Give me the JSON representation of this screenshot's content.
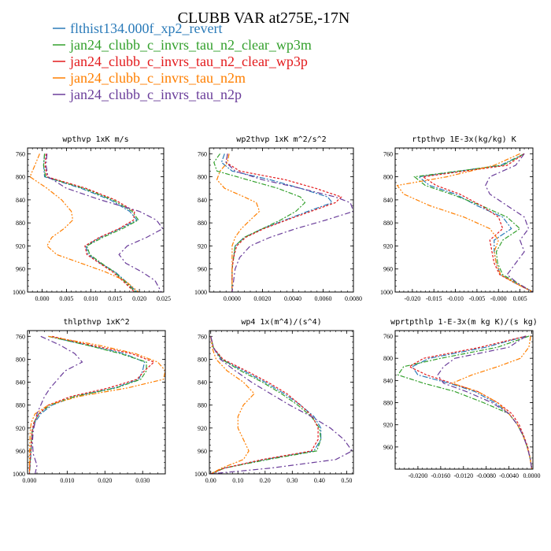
{
  "title": "CLUBB VAR at275E,-17N",
  "colors": {
    "blue": "#2b7bb9",
    "green": "#33a02c",
    "red": "#e31a1c",
    "orange": "#ff7f00",
    "purple": "#6a3d9a"
  },
  "legend": [
    {
      "name": "flthist134.000f_xp2_revert",
      "color": "#2b7bb9"
    },
    {
      "name": "jan24_clubb_c_invrs_tau_n2_clear_wp3m",
      "color": "#33a02c"
    },
    {
      "name": "jan24_clubb_c_invrs_tau_n2_clear_wp3p",
      "color": "#e31a1c"
    },
    {
      "name": "jan24_clubb_c_invrs_tau_n2m",
      "color": "#ff7f00"
    },
    {
      "name": "jan24_clubb_c_invrs_tau_n2p",
      "color": "#6a3d9a"
    }
  ],
  "chart_data": [
    {
      "type": "line",
      "title": "wpthvp  1xK m/s",
      "xlabel": "",
      "ylabel": "",
      "xlim": [
        -0.003,
        0.025
      ],
      "ylim": [
        1000,
        750
      ],
      "xticks": [
        0.0,
        0.005,
        0.01,
        0.015,
        0.02,
        0.025
      ],
      "xticklabels": [
        "0.000",
        "0.005",
        "0.010",
        "0.015",
        "0.020",
        "0.025"
      ],
      "yticks": [
        760,
        800,
        840,
        880,
        920,
        960,
        1000
      ],
      "yticklabels": [
        "760",
        "800",
        "840",
        "880",
        "920",
        "960",
        "1000"
      ],
      "y": [
        760,
        780,
        800,
        820,
        840,
        860,
        875,
        890,
        905,
        920,
        935,
        950,
        965,
        980,
        1000
      ],
      "series": [
        {
          "color": "#2b7bb9",
          "values": [
            0.0005,
            0.0003,
            0.0005,
            0.008,
            0.014,
            0.018,
            0.0195,
            0.016,
            0.012,
            0.009,
            0.0095,
            0.012,
            0.015,
            0.017,
            0.0195
          ]
        },
        {
          "color": "#33a02c",
          "values": [
            0.0005,
            0.0003,
            0.0007,
            0.0085,
            0.0145,
            0.0185,
            0.0198,
            0.0165,
            0.0125,
            0.0092,
            0.0098,
            0.0122,
            0.0148,
            0.0168,
            0.0192
          ]
        },
        {
          "color": "#e31a1c",
          "values": [
            0.0008,
            0.0006,
            0.001,
            0.009,
            0.015,
            0.019,
            0.0188,
            0.0158,
            0.0118,
            0.0088,
            0.0092,
            0.0118,
            0.0145,
            0.0165,
            0.019
          ]
        },
        {
          "color": "#ff7f00",
          "values": [
            -0.0005,
            -0.0015,
            -0.0025,
            0.001,
            0.004,
            0.006,
            0.0063,
            0.0045,
            0.002,
            0.001,
            0.003,
            0.008,
            0.013,
            0.017,
            0.0198
          ]
        },
        {
          "color": "#6a3d9a",
          "values": [
            0.001,
            0.0008,
            0.0012,
            0.005,
            0.012,
            0.02,
            0.0235,
            0.0248,
            0.0215,
            0.0175,
            0.0158,
            0.0172,
            0.0205,
            0.0232,
            0.0245
          ]
        }
      ]
    },
    {
      "type": "line",
      "title": "wp2thvp  1xK m^2/s^2",
      "xlabel": "",
      "ylabel": "",
      "xlim": [
        -0.0015,
        0.008
      ],
      "ylim": [
        1000,
        750
      ],
      "xticks": [
        0.0,
        0.002,
        0.004,
        0.006,
        0.008
      ],
      "xticklabels": [
        "0.0000",
        "0.0020",
        "0.0040",
        "0.0060",
        "0.0080"
      ],
      "yticks": [
        760,
        800,
        840,
        880,
        920,
        960,
        1000
      ],
      "yticklabels": [
        "760",
        "800",
        "840",
        "880",
        "920",
        "960",
        "1000"
      ],
      "y": [
        760,
        775,
        790,
        805,
        820,
        835,
        845,
        860,
        875,
        890,
        905,
        920,
        940,
        960,
        980,
        1000
      ],
      "series": [
        {
          "color": "#2b7bb9",
          "values": [
            -0.0005,
            -0.0007,
            0.0,
            0.0025,
            0.0045,
            0.0063,
            0.0066,
            0.005,
            0.0035,
            0.002,
            0.0008,
            0.0002,
            0.0001,
            0.0,
            0.0,
            0.0
          ]
        },
        {
          "color": "#33a02c",
          "values": [
            -0.0008,
            -0.0012,
            -0.001,
            0.001,
            0.003,
            0.0045,
            0.0048,
            0.0042,
            0.0032,
            0.002,
            0.0008,
            0.0002,
            0.0001,
            0.0,
            0.0,
            0.0
          ]
        },
        {
          "color": "#e31a1c",
          "values": [
            -0.0003,
            -0.0004,
            0.0005,
            0.0035,
            0.0055,
            0.0072,
            0.0068,
            0.0052,
            0.0036,
            0.0021,
            0.0009,
            0.0003,
            0.0001,
            0.0,
            0.0,
            0.0
          ]
        },
        {
          "color": "#ff7f00",
          "values": [
            -0.0002,
            -0.0003,
            -0.0008,
            -0.001,
            -0.0005,
            0.0008,
            0.0016,
            0.0018,
            0.0012,
            0.0006,
            0.0002,
            0.0,
            0.0,
            0.0,
            0.0,
            0.0
          ]
        },
        {
          "color": "#6a3d9a",
          "values": [
            -0.0003,
            -0.0004,
            0.0002,
            0.002,
            0.0045,
            0.0068,
            0.0078,
            0.008,
            0.0062,
            0.0042,
            0.0025,
            0.0012,
            0.0005,
            0.0002,
            0.0001,
            0.0
          ]
        }
      ]
    },
    {
      "type": "line",
      "title": "rtpthvp  1E-3x(kg/kg) K",
      "xlabel": "",
      "ylabel": "",
      "xlim": [
        -0.024,
        0.008
      ],
      "ylim": [
        1000,
        750
      ],
      "xticks": [
        -0.02,
        -0.015,
        -0.01,
        -0.005,
        0.0,
        0.005
      ],
      "xticklabels": [
        "-0.020",
        "-0.015",
        "-0.010",
        "-0.005",
        "-0.000",
        "0.005"
      ],
      "yticks": [
        760,
        800,
        840,
        880,
        920,
        960,
        1000
      ],
      "yticklabels": [
        "760",
        "800",
        "840",
        "880",
        "920",
        "960",
        "1000"
      ],
      "y": [
        760,
        780,
        800,
        815,
        830,
        850,
        870,
        890,
        910,
        930,
        950,
        970,
        985,
        1000
      ],
      "series": [
        {
          "color": "#2b7bb9",
          "values": [
            0.006,
            0.0005,
            -0.0185,
            -0.016,
            -0.01,
            -0.005,
            0.001,
            0.003,
            -0.001,
            -0.001,
            -0.0005,
            0.0005,
            0.004,
            0.008
          ]
        },
        {
          "color": "#33a02c",
          "values": [
            0.006,
            0.001,
            -0.0195,
            -0.017,
            -0.011,
            -0.004,
            0.002,
            0.005,
            0.001,
            -0.0005,
            -0.0002,
            0.001,
            0.0045,
            0.008
          ]
        },
        {
          "color": "#e31a1c",
          "values": [
            0.006,
            0.002,
            -0.0175,
            -0.0145,
            -0.009,
            -0.004,
            0.0,
            0.001,
            -0.002,
            -0.0015,
            -0.001,
            0.0003,
            0.004,
            0.008
          ]
        },
        {
          "color": "#ff7f00",
          "values": [
            0.005,
            -0.001,
            -0.012,
            -0.0235,
            -0.022,
            -0.016,
            -0.008,
            -0.002,
            0.0,
            -0.001,
            -0.0005,
            0.0005,
            0.004,
            0.008
          ]
        },
        {
          "color": "#6a3d9a",
          "values": [
            0.006,
            0.004,
            -0.002,
            -0.003,
            -0.002,
            0.002,
            0.006,
            0.007,
            0.005,
            0.006,
            0.004,
            0.002,
            0.0045,
            0.008
          ]
        }
      ]
    },
    {
      "type": "line",
      "title": "thlpthvp  1xK^2",
      "xlabel": "",
      "ylabel": "",
      "xlim": [
        -0.0005,
        0.036
      ],
      "ylim": [
        1000,
        750
      ],
      "xticks": [
        0.0,
        0.01,
        0.02,
        0.03
      ],
      "xticklabels": [
        "0.000",
        "0.010",
        "0.020",
        "0.030"
      ],
      "yticks": [
        760,
        800,
        840,
        880,
        920,
        960,
        1000
      ],
      "yticklabels": [
        "760",
        "800",
        "840",
        "880",
        "920",
        "960",
        "1000"
      ],
      "y": [
        760,
        775,
        790,
        805,
        820,
        835,
        850,
        865,
        880,
        895,
        910,
        925,
        945,
        965,
        985,
        1000
      ],
      "series": [
        {
          "color": "#2b7bb9",
          "values": [
            0.005,
            0.015,
            0.025,
            0.0305,
            0.03,
            0.029,
            0.0225,
            0.012,
            0.006,
            0.003,
            0.0015,
            0.0008,
            0.0006,
            0.0004,
            0.0002,
            0.0
          ]
        },
        {
          "color": "#33a02c",
          "values": [
            0.005,
            0.015,
            0.024,
            0.031,
            0.031,
            0.0295,
            0.023,
            0.012,
            0.0055,
            0.0025,
            0.0012,
            0.0007,
            0.0005,
            0.0003,
            0.0001,
            0.0
          ]
        },
        {
          "color": "#e31a1c",
          "values": [
            0.006,
            0.016,
            0.027,
            0.033,
            0.0305,
            0.0285,
            0.021,
            0.011,
            0.005,
            0.0025,
            0.0012,
            0.0007,
            0.0005,
            0.0003,
            0.0001,
            0.0
          ]
        },
        {
          "color": "#ff7f00",
          "values": [
            0.005,
            0.018,
            0.028,
            0.034,
            0.036,
            0.0355,
            0.026,
            0.013,
            0.005,
            0.0015,
            0.0005,
            0.0002,
            0.0001,
            0.0,
            0.0,
            0.0
          ]
        },
        {
          "color": "#6a3d9a",
          "values": [
            0.003,
            0.008,
            0.012,
            0.014,
            0.0095,
            0.0075,
            0.0055,
            0.004,
            0.003,
            0.002,
            0.0015,
            0.001,
            0.0008,
            0.001,
            0.002,
            0.0015
          ]
        }
      ]
    },
    {
      "type": "line",
      "title": "wp4  1x(m^4)/(s^4)",
      "xlabel": "",
      "ylabel": "",
      "xlim": [
        -0.005,
        0.525
      ],
      "ylim": [
        1000,
        750
      ],
      "xticks": [
        0.0,
        0.1,
        0.2,
        0.3,
        0.4,
        0.5
      ],
      "xticklabels": [
        "0.00",
        "0.10",
        "0.20",
        "0.30",
        "0.40",
        "0.50"
      ],
      "yticks": [
        760,
        800,
        840,
        880,
        920,
        960,
        1000
      ],
      "yticklabels": [
        "760",
        "800",
        "840",
        "880",
        "920",
        "960",
        "1000"
      ],
      "y": [
        760,
        780,
        800,
        820,
        840,
        860,
        880,
        900,
        920,
        940,
        960,
        975,
        990,
        1000
      ],
      "series": [
        {
          "color": "#2b7bb9",
          "values": [
            0.0,
            0.01,
            0.04,
            0.12,
            0.2,
            0.27,
            0.33,
            0.38,
            0.405,
            0.405,
            0.38,
            0.2,
            0.05,
            0.0
          ]
        },
        {
          "color": "#33a02c",
          "values": [
            0.0,
            0.01,
            0.04,
            0.11,
            0.19,
            0.26,
            0.32,
            0.37,
            0.4,
            0.405,
            0.39,
            0.21,
            0.05,
            0.0
          ]
        },
        {
          "color": "#e31a1c",
          "values": [
            0.0,
            0.01,
            0.045,
            0.13,
            0.21,
            0.28,
            0.33,
            0.375,
            0.395,
            0.395,
            0.37,
            0.19,
            0.05,
            0.0
          ]
        },
        {
          "color": "#ff7f00",
          "values": [
            0.0,
            0.005,
            0.02,
            0.06,
            0.12,
            0.16,
            0.12,
            0.1,
            0.1,
            0.12,
            0.14,
            0.12,
            0.04,
            0.0
          ]
        },
        {
          "color": "#6a3d9a",
          "values": [
            0.0,
            0.01,
            0.035,
            0.09,
            0.15,
            0.22,
            0.29,
            0.37,
            0.44,
            0.49,
            0.52,
            0.46,
            0.22,
            0.0
          ]
        }
      ]
    },
    {
      "type": "line",
      "title": "wprtpthlp  1-E-3x(m kg K)/(s kg)",
      "xlabel": "",
      "ylabel": "",
      "xlim": [
        -0.024,
        0.0002
      ],
      "ylim": [
        1000,
        750
      ],
      "xticks": [
        -0.02,
        -0.016,
        -0.012,
        -0.008,
        -0.004,
        0.0
      ],
      "xticklabels": [
        "-0.0200",
        "-0.0160",
        "-0.0120",
        "-0.0080",
        "-0.0040",
        "0.0000"
      ],
      "yticks": [
        760,
        800,
        840,
        880,
        920,
        960
      ],
      "yticklabels": [
        "760",
        "800",
        "840",
        "880",
        "920",
        "960"
      ],
      "y": [
        760,
        780,
        800,
        815,
        830,
        845,
        860,
        880,
        900,
        920,
        940,
        960,
        980,
        1000
      ],
      "series": [
        {
          "color": "#2b7bb9",
          "values": [
            -0.001,
            -0.008,
            -0.018,
            -0.021,
            -0.02,
            -0.0145,
            -0.01,
            -0.0065,
            -0.004,
            -0.0025,
            -0.0015,
            -0.0008,
            -0.0003,
            0.0
          ]
        },
        {
          "color": "#33a02c",
          "values": [
            -0.0005,
            -0.006,
            -0.016,
            -0.0225,
            -0.0235,
            -0.019,
            -0.0135,
            -0.0085,
            -0.004,
            -0.0025,
            -0.0015,
            -0.0008,
            -0.0003,
            0.0
          ]
        },
        {
          "color": "#e31a1c",
          "values": [
            -0.001,
            -0.009,
            -0.019,
            -0.0215,
            -0.0185,
            -0.014,
            -0.0095,
            -0.006,
            -0.0035,
            -0.0022,
            -0.0014,
            -0.0007,
            -0.0003,
            0.0
          ]
        },
        {
          "color": "#ff7f00",
          "values": [
            -0.0002,
            -0.0005,
            -0.002,
            -0.006,
            -0.0105,
            -0.014,
            -0.0095,
            -0.006,
            -0.004,
            -0.0025,
            -0.0015,
            -0.0008,
            -0.0003,
            0.0
          ]
        },
        {
          "color": "#6a3d9a",
          "values": [
            -0.001,
            -0.004,
            -0.0135,
            -0.0155,
            -0.0165,
            -0.0155,
            -0.0115,
            -0.007,
            -0.004,
            -0.0025,
            -0.0015,
            -0.0008,
            -0.0003,
            0.0
          ]
        }
      ]
    }
  ]
}
